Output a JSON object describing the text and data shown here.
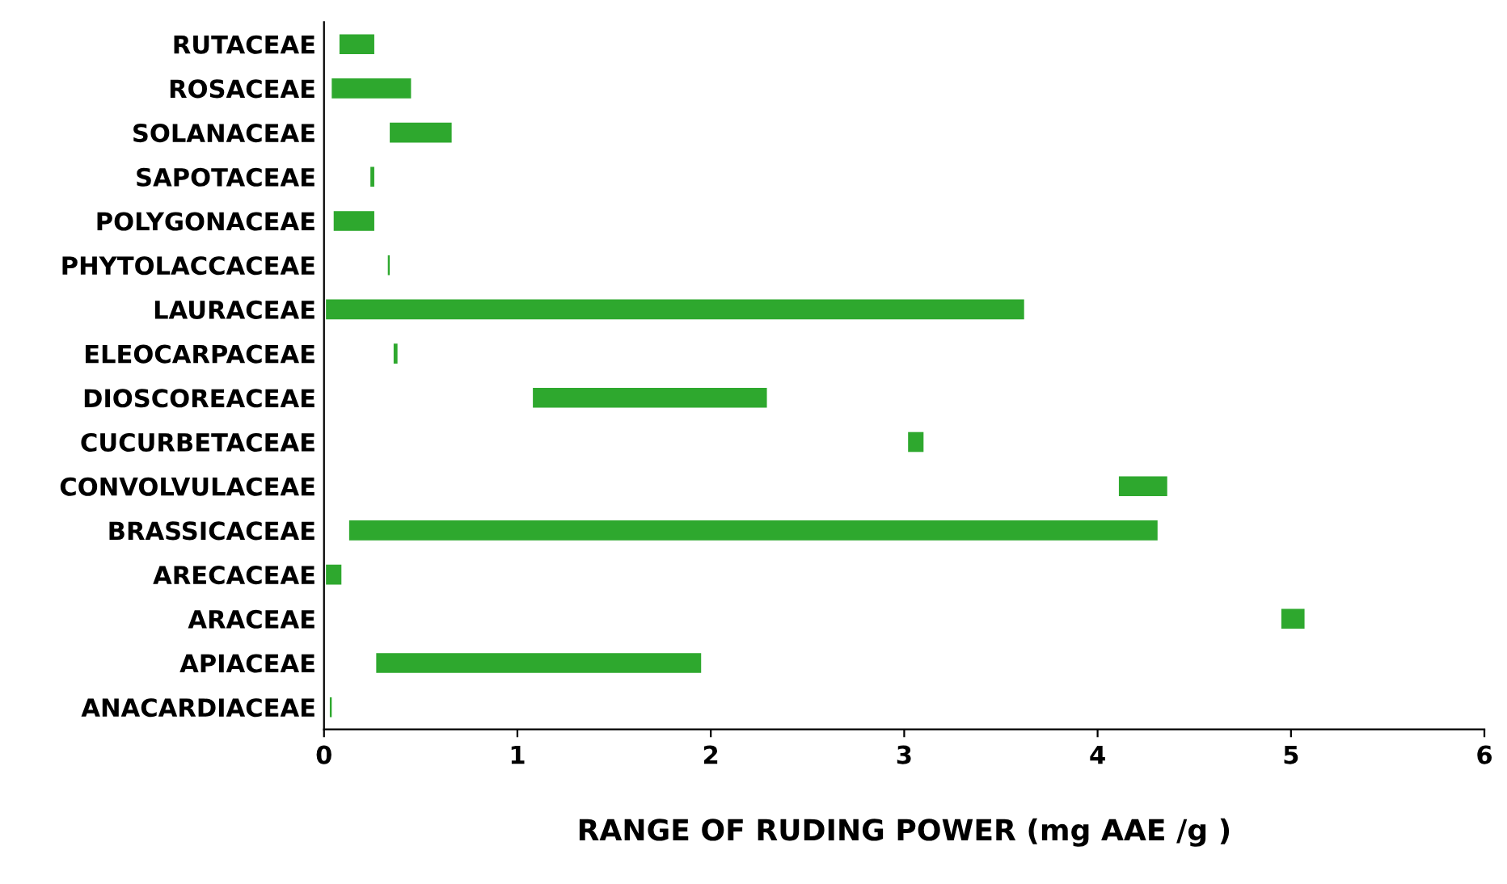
{
  "chart_data": {
    "type": "bar",
    "orientation": "horizontal",
    "xlabel": "RANGE OF RUDING POWER (mg AAE /g )",
    "categories": [
      "RUTACEAE",
      "ROSACEAE",
      "SOLANACEAE",
      "SAPOTACEAE",
      "POLYGONACEAE",
      "PHYTOLACCACEAE",
      "LAURACEAE",
      "ELEOCARPACEAE",
      "DIOSCOREACEAE",
      "CUCURBETACEAE",
      "CONVOLVULACEAE",
      "BRASSICACEAE",
      "ARECACEAE",
      "ARACEAE",
      "APIACEAE",
      "ANACARDIACEAE"
    ],
    "base": [
      0.08,
      0.04,
      0.34,
      0.24,
      0.05,
      0.33,
      0.01,
      0.36,
      1.08,
      3.02,
      4.11,
      0.13,
      0.01,
      4.95,
      0.27,
      0.03
    ],
    "values": [
      0.18,
      0.41,
      0.32,
      0.02,
      0.21,
      0.01,
      3.61,
      0.02,
      1.21,
      0.08,
      0.25,
      4.18,
      0.08,
      0.12,
      1.68,
      0.01
    ],
    "color": "#2ea82e",
    "xlim": [
      0,
      6
    ],
    "xticks": [
      0,
      1,
      2,
      3,
      4,
      5,
      6
    ],
    "grid": false,
    "legend": false
  }
}
